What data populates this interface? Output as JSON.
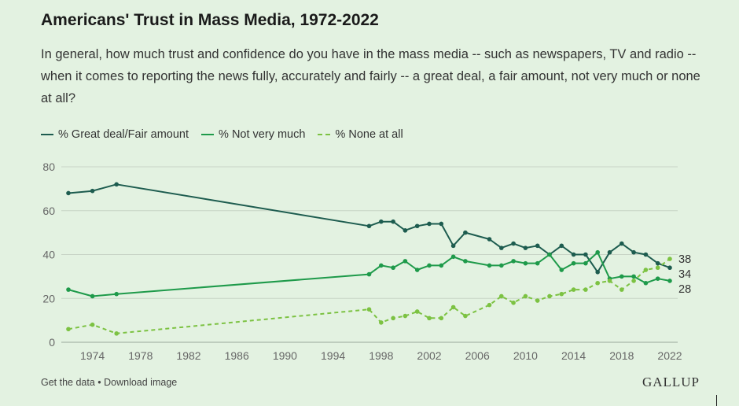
{
  "header": {
    "title": "Americans' Trust in Mass Media, 1972-2022",
    "subtitle": "In general, how much trust and confidence do you have in the mass media -- such as newspapers, TV and radio -- when it comes to reporting the news fully, accurately and fairly -- a great deal, a fair amount, not very much or none at all?"
  },
  "footer": {
    "links": "Get the data • Download image",
    "brand": "GALLUP"
  },
  "chart_data": {
    "type": "line",
    "xlim": [
      1972,
      2022
    ],
    "ylim": [
      0,
      80
    ],
    "yticks": [
      0,
      20,
      40,
      60,
      80
    ],
    "xticks": [
      1974,
      1978,
      1982,
      1986,
      1990,
      1994,
      1998,
      2002,
      2006,
      2010,
      2014,
      2018,
      2022
    ],
    "grid": "horizontal",
    "legend_position": "top-left",
    "series": [
      {
        "name": "% Great deal/Fair amount",
        "color": "#1d5c4f",
        "dash": "solid",
        "end_label": "34",
        "points": [
          [
            1972,
            68
          ],
          [
            1974,
            69
          ],
          [
            1976,
            72
          ],
          [
            1997,
            53
          ],
          [
            1998,
            55
          ],
          [
            1999,
            55
          ],
          [
            2000,
            51
          ],
          [
            2001,
            53
          ],
          [
            2002,
            54
          ],
          [
            2003,
            54
          ],
          [
            2004,
            44
          ],
          [
            2005,
            50
          ],
          [
            2007,
            47
          ],
          [
            2008,
            43
          ],
          [
            2009,
            45
          ],
          [
            2010,
            43
          ],
          [
            2011,
            44
          ],
          [
            2012,
            40
          ],
          [
            2013,
            44
          ],
          [
            2014,
            40
          ],
          [
            2015,
            40
          ],
          [
            2016,
            32
          ],
          [
            2017,
            41
          ],
          [
            2018,
            45
          ],
          [
            2019,
            41
          ],
          [
            2020,
            40
          ],
          [
            2021,
            36
          ],
          [
            2022,
            34
          ]
        ]
      },
      {
        "name": "% Not very much",
        "color": "#1e9a4a",
        "dash": "solid",
        "end_label": "28",
        "points": [
          [
            1972,
            24
          ],
          [
            1974,
            21
          ],
          [
            1976,
            22
          ],
          [
            1997,
            31
          ],
          [
            1998,
            35
          ],
          [
            1999,
            34
          ],
          [
            2000,
            37
          ],
          [
            2001,
            33
          ],
          [
            2002,
            35
          ],
          [
            2003,
            35
          ],
          [
            2004,
            39
          ],
          [
            2005,
            37
          ],
          [
            2007,
            35
          ],
          [
            2008,
            35
          ],
          [
            2009,
            37
          ],
          [
            2010,
            36
          ],
          [
            2011,
            36
          ],
          [
            2012,
            40
          ],
          [
            2013,
            33
          ],
          [
            2014,
            36
          ],
          [
            2015,
            36
          ],
          [
            2016,
            41
          ],
          [
            2017,
            29
          ],
          [
            2018,
            30
          ],
          [
            2019,
            30
          ],
          [
            2020,
            27
          ],
          [
            2021,
            29
          ],
          [
            2022,
            28
          ]
        ]
      },
      {
        "name": "% None at all",
        "color": "#7cc242",
        "dash": "dashed",
        "end_label": "38",
        "points": [
          [
            1972,
            6
          ],
          [
            1974,
            8
          ],
          [
            1976,
            4
          ],
          [
            1997,
            15
          ],
          [
            1998,
            9
          ],
          [
            1999,
            11
          ],
          [
            2000,
            12
          ],
          [
            2001,
            14
          ],
          [
            2002,
            11
          ],
          [
            2003,
            11
          ],
          [
            2004,
            16
          ],
          [
            2005,
            12
          ],
          [
            2007,
            17
          ],
          [
            2008,
            21
          ],
          [
            2009,
            18
          ],
          [
            2010,
            21
          ],
          [
            2011,
            19
          ],
          [
            2012,
            21
          ],
          [
            2013,
            22
          ],
          [
            2014,
            24
          ],
          [
            2015,
            24
          ],
          [
            2016,
            27
          ],
          [
            2017,
            28
          ],
          [
            2018,
            24
          ],
          [
            2019,
            28
          ],
          [
            2020,
            33
          ],
          [
            2021,
            34
          ],
          [
            2022,
            38
          ]
        ]
      }
    ]
  }
}
